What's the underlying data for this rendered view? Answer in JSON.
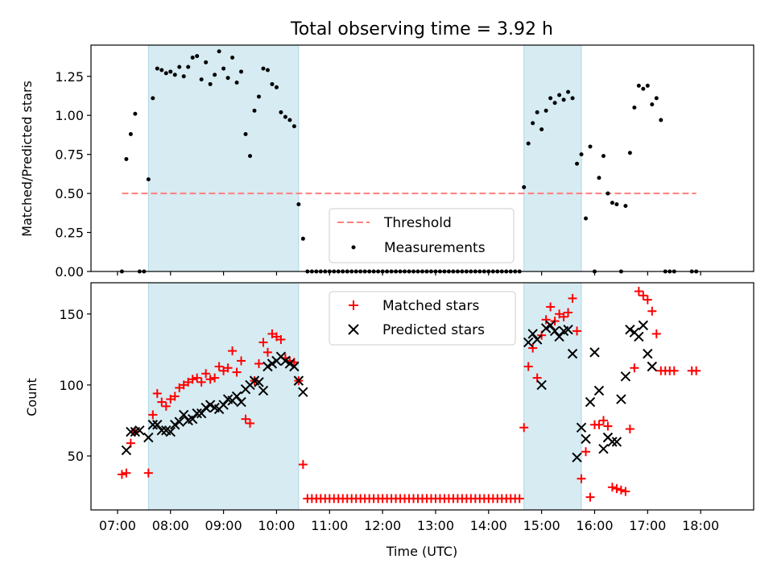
{
  "chart_data": [
    {
      "type": "scatter",
      "title": "Total observing time = 3.92 h",
      "xlabel": "",
      "ylabel": "Matched/Predicted stars",
      "xlim": [
        "06:30",
        "19:00"
      ],
      "ylim": [
        0,
        1.45
      ],
      "yticks": [
        "0.00",
        "0.25",
        "0.50",
        "0.75",
        "1.00",
        "1.25"
      ],
      "shaded_windows": [
        [
          "07:35",
          "10:25"
        ],
        [
          "14:40",
          "15:45"
        ]
      ],
      "threshold": {
        "value": 0.5,
        "from": "07:05",
        "to": "17:55"
      },
      "legend": {
        "position": "lower center",
        "entries": [
          "Threshold",
          "Measurements"
        ]
      },
      "series": [
        {
          "name": "Threshold",
          "style": "dashed-line",
          "color": "#ff7f7f"
        },
        {
          "name": "Measurements",
          "style": "dot",
          "color": "#000000",
          "x": [
            "07:05",
            "07:10",
            "07:15",
            "07:20",
            "07:25",
            "07:30",
            "07:35",
            "07:40",
            "07:45",
            "07:50",
            "07:55",
            "08:00",
            "08:05",
            "08:10",
            "08:15",
            "08:20",
            "08:25",
            "08:30",
            "08:35",
            "08:40",
            "08:45",
            "08:50",
            "08:55",
            "09:00",
            "09:05",
            "09:10",
            "09:15",
            "09:20",
            "09:25",
            "09:30",
            "09:35",
            "09:40",
            "09:45",
            "09:50",
            "09:55",
            "10:00",
            "10:05",
            "10:10",
            "10:15",
            "10:20",
            "10:25",
            "10:30",
            "10:35",
            "10:40",
            "10:45",
            "10:50",
            "10:55",
            "11:00",
            "11:05",
            "11:10",
            "11:15",
            "11:20",
            "11:25",
            "11:30",
            "11:35",
            "11:40",
            "11:45",
            "11:50",
            "11:55",
            "12:00",
            "12:05",
            "12:10",
            "12:15",
            "12:20",
            "12:25",
            "12:30",
            "12:35",
            "12:40",
            "12:45",
            "12:50",
            "12:55",
            "13:00",
            "13:05",
            "13:10",
            "13:15",
            "13:20",
            "13:25",
            "13:30",
            "13:35",
            "13:40",
            "13:45",
            "13:50",
            "13:55",
            "14:00",
            "14:05",
            "14:10",
            "14:15",
            "14:20",
            "14:25",
            "14:30",
            "14:35",
            "14:40",
            "14:45",
            "14:50",
            "14:55",
            "15:00",
            "15:05",
            "15:10",
            "15:15",
            "15:20",
            "15:25",
            "15:30",
            "15:35",
            "15:40",
            "15:45",
            "15:50",
            "15:55",
            "16:00",
            "16:05",
            "16:10",
            "16:15",
            "16:20",
            "16:25",
            "16:30",
            "16:35",
            "16:40",
            "16:45",
            "16:50",
            "16:55",
            "17:00",
            "17:05",
            "17:10",
            "17:15",
            "17:20",
            "17:25",
            "17:30",
            "17:50",
            "17:55"
          ],
          "y": [
            0.0,
            0.72,
            0.88,
            1.01,
            0.0,
            0.0,
            0.59,
            1.11,
            1.3,
            1.29,
            1.27,
            1.28,
            1.26,
            1.31,
            1.25,
            1.31,
            1.37,
            1.38,
            1.23,
            1.34,
            1.2,
            1.26,
            1.41,
            1.3,
            1.24,
            1.37,
            1.21,
            1.28,
            0.88,
            0.74,
            1.03,
            1.12,
            1.3,
            1.29,
            1.2,
            1.18,
            1.02,
            0.99,
            0.97,
            0.93,
            0.43,
            0.21,
            0.0,
            0.0,
            0.0,
            0.0,
            0.0,
            0.0,
            0.0,
            0.0,
            0.0,
            0.0,
            0.0,
            0.0,
            0.0,
            0.0,
            0.0,
            0.0,
            0.0,
            0.0,
            0.0,
            0.0,
            0.0,
            0.0,
            0.0,
            0.0,
            0.0,
            0.0,
            0.0,
            0.0,
            0.0,
            0.0,
            0.0,
            0.0,
            0.0,
            0.0,
            0.0,
            0.0,
            0.0,
            0.0,
            0.0,
            0.0,
            0.0,
            0.0,
            0.0,
            0.0,
            0.0,
            0.0,
            0.0,
            0.0,
            0.0,
            0.54,
            0.82,
            0.95,
            1.02,
            0.91,
            1.03,
            1.11,
            1.08,
            1.13,
            1.1,
            1.15,
            1.11,
            0.69,
            0.75,
            0.34,
            0.8,
            0.0,
            0.6,
            0.74,
            0.5,
            0.44,
            0.43,
            0.0,
            0.42,
            0.76,
            1.05,
            1.19,
            1.17,
            1.19,
            1.07,
            1.11,
            0.97,
            0.0,
            0.0,
            0.0,
            0.0,
            0.0
          ]
        }
      ]
    },
    {
      "type": "scatter",
      "title": "",
      "xlabel": "Time (UTC)",
      "ylabel": "Count",
      "xlim": [
        "06:30",
        "19:00"
      ],
      "ylim": [
        12,
        172
      ],
      "xticks": [
        "07:00",
        "08:00",
        "09:00",
        "10:00",
        "11:00",
        "12:00",
        "13:00",
        "14:00",
        "15:00",
        "16:00",
        "17:00",
        "18:00"
      ],
      "yticks": [
        "50",
        "100",
        "150"
      ],
      "shaded_windows": [
        [
          "07:35",
          "10:25"
        ],
        [
          "14:40",
          "15:45"
        ]
      ],
      "legend": {
        "position": "upper center",
        "entries": [
          "Matched stars",
          "Predicted stars"
        ]
      },
      "series": [
        {
          "name": "Matched stars",
          "marker": "+",
          "color": "#ff0000",
          "x": [
            "07:05",
            "07:10",
            "07:15",
            "07:20",
            "07:35",
            "07:40",
            "07:45",
            "07:50",
            "07:55",
            "08:00",
            "08:05",
            "08:10",
            "08:15",
            "08:20",
            "08:25",
            "08:30",
            "08:35",
            "08:40",
            "08:45",
            "08:50",
            "08:55",
            "09:00",
            "09:05",
            "09:10",
            "09:15",
            "09:20",
            "09:25",
            "09:30",
            "09:35",
            "09:40",
            "09:45",
            "09:50",
            "09:55",
            "10:00",
            "10:05",
            "10:10",
            "10:15",
            "10:20",
            "10:25",
            "10:30",
            "10:35",
            "10:40",
            "10:45",
            "10:50",
            "10:55",
            "11:00",
            "11:05",
            "11:10",
            "11:15",
            "11:20",
            "11:25",
            "11:30",
            "11:35",
            "11:40",
            "11:45",
            "11:50",
            "11:55",
            "12:00",
            "12:05",
            "12:10",
            "12:15",
            "12:20",
            "12:25",
            "12:30",
            "12:35",
            "12:40",
            "12:45",
            "12:50",
            "12:55",
            "13:00",
            "13:05",
            "13:10",
            "13:15",
            "13:20",
            "13:25",
            "13:30",
            "13:35",
            "13:40",
            "13:45",
            "13:50",
            "13:55",
            "14:00",
            "14:05",
            "14:10",
            "14:15",
            "14:20",
            "14:25",
            "14:30",
            "14:35",
            "14:40",
            "14:45",
            "14:50",
            "14:55",
            "15:00",
            "15:05",
            "15:10",
            "15:15",
            "15:20",
            "15:25",
            "15:30",
            "15:35",
            "15:40",
            "15:45",
            "15:50",
            "15:55",
            "16:00",
            "16:05",
            "16:10",
            "16:15",
            "16:20",
            "16:25",
            "16:30",
            "16:35",
            "16:40",
            "16:45",
            "16:50",
            "16:55",
            "17:00",
            "17:05",
            "17:10",
            "17:15",
            "17:20",
            "17:25",
            "17:30",
            "17:50",
            "17:55"
          ],
          "y": [
            37,
            38,
            59,
            67,
            38,
            79,
            94,
            88,
            85,
            90,
            92,
            98,
            100,
            102,
            104,
            105,
            102,
            108,
            104,
            105,
            113,
            110,
            112,
            124,
            109,
            117,
            76,
            73,
            103,
            115,
            130,
            123,
            136,
            134,
            132,
            119,
            117,
            116,
            103,
            44,
            20,
            20,
            20,
            20,
            20,
            20,
            20,
            20,
            20,
            20,
            20,
            20,
            20,
            20,
            20,
            20,
            20,
            20,
            20,
            20,
            20,
            20,
            20,
            20,
            20,
            20,
            20,
            20,
            20,
            20,
            20,
            20,
            20,
            20,
            20,
            20,
            20,
            20,
            20,
            20,
            20,
            20,
            20,
            20,
            20,
            20,
            20,
            20,
            20,
            70,
            113,
            126,
            105,
            135,
            146,
            155,
            145,
            150,
            148,
            151,
            161,
            138,
            34,
            53,
            21,
            72,
            72,
            75,
            71,
            28,
            27,
            26,
            25,
            69,
            112,
            166,
            163,
            160,
            152,
            136,
            110,
            110,
            110,
            110,
            110,
            110
          ]
        },
        {
          "name": "Predicted stars",
          "marker": "x",
          "color": "#000000",
          "x": [
            "07:10",
            "07:15",
            "07:20",
            "07:25",
            "07:35",
            "07:40",
            "07:45",
            "07:50",
            "07:55",
            "08:00",
            "08:05",
            "08:10",
            "08:15",
            "08:20",
            "08:25",
            "08:30",
            "08:35",
            "08:40",
            "08:45",
            "08:50",
            "08:55",
            "09:00",
            "09:05",
            "09:10",
            "09:15",
            "09:20",
            "09:25",
            "09:30",
            "09:35",
            "09:40",
            "09:45",
            "09:50",
            "09:55",
            "10:00",
            "10:05",
            "10:10",
            "10:15",
            "10:20",
            "10:25",
            "10:30",
            "14:45",
            "14:50",
            "14:55",
            "15:00",
            "15:05",
            "15:10",
            "15:15",
            "15:20",
            "15:25",
            "15:30",
            "15:35",
            "15:40",
            "15:45",
            "15:50",
            "15:55",
            "16:00",
            "16:05",
            "16:10",
            "16:15",
            "16:20",
            "16:25",
            "16:30",
            "16:35",
            "16:40",
            "16:45",
            "16:50",
            "16:55",
            "17:00",
            "17:05",
            "17:10",
            "17:15"
          ],
          "y": [
            54,
            67,
            67,
            68,
            63,
            72,
            72,
            68,
            68,
            67,
            72,
            74,
            79,
            75,
            76,
            80,
            80,
            84,
            86,
            84,
            83,
            86,
            90,
            89,
            92,
            88,
            97,
            100,
            103,
            102,
            96,
            113,
            115,
            117,
            120,
            117,
            115,
            113,
            103,
            95,
            130,
            136,
            132,
            100,
            140,
            142,
            138,
            134,
            138,
            139,
            122,
            49,
            70,
            62,
            88,
            123,
            96,
            55,
            63,
            60,
            60,
            90,
            106,
            139,
            137,
            134,
            142,
            122,
            113,
            null,
            null
          ]
        }
      ]
    }
  ]
}
